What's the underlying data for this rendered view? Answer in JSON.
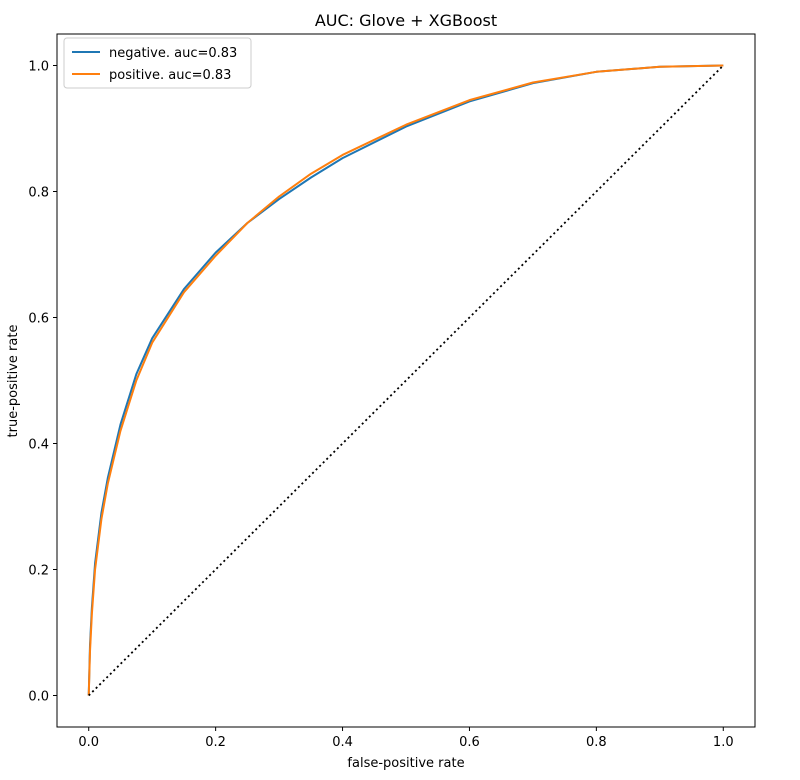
{
  "chart_data": {
    "type": "line",
    "title": "AUC: Glove + XGBoost",
    "xlabel": "false-positive rate",
    "ylabel": "true-positive rate",
    "xlim": [
      -0.05,
      1.05
    ],
    "ylim": [
      -0.05,
      1.05
    ],
    "xticks": [
      0.0,
      0.2,
      0.4,
      0.6,
      0.8,
      1.0
    ],
    "xtick_labels": [
      "0.0",
      "0.2",
      "0.4",
      "0.6",
      "0.8",
      "1.0"
    ],
    "yticks": [
      0.0,
      0.2,
      0.4,
      0.6,
      0.8,
      1.0
    ],
    "ytick_labels": [
      "0.0",
      "0.2",
      "0.4",
      "0.6",
      "0.8",
      "1.0"
    ],
    "grid": false,
    "legend_position": "top-left",
    "series": [
      {
        "name": "negative. auc=0.83",
        "color": "#1f77b4",
        "x": [
          0.0,
          0.002,
          0.005,
          0.01,
          0.02,
          0.03,
          0.05,
          0.075,
          0.1,
          0.15,
          0.2,
          0.25,
          0.3,
          0.35,
          0.4,
          0.5,
          0.6,
          0.7,
          0.8,
          0.9,
          1.0
        ],
        "y": [
          0.0,
          0.08,
          0.14,
          0.21,
          0.29,
          0.345,
          0.43,
          0.51,
          0.567,
          0.645,
          0.703,
          0.75,
          0.788,
          0.822,
          0.853,
          0.903,
          0.943,
          0.972,
          0.99,
          0.998,
          1.0
        ]
      },
      {
        "name": "positive. auc=0.83",
        "color": "#ff7f0e",
        "x": [
          0.0,
          0.002,
          0.005,
          0.01,
          0.02,
          0.03,
          0.05,
          0.075,
          0.1,
          0.15,
          0.2,
          0.25,
          0.3,
          0.35,
          0.4,
          0.5,
          0.6,
          0.7,
          0.8,
          0.9,
          1.0
        ],
        "y": [
          0.0,
          0.07,
          0.13,
          0.2,
          0.28,
          0.336,
          0.42,
          0.5,
          0.56,
          0.64,
          0.698,
          0.75,
          0.792,
          0.828,
          0.858,
          0.906,
          0.945,
          0.973,
          0.99,
          0.998,
          1.0
        ]
      },
      {
        "name": "",
        "color": "#000000",
        "dashed": true,
        "x": [
          0.0,
          1.0
        ],
        "y": [
          0.0,
          1.0
        ]
      }
    ]
  }
}
